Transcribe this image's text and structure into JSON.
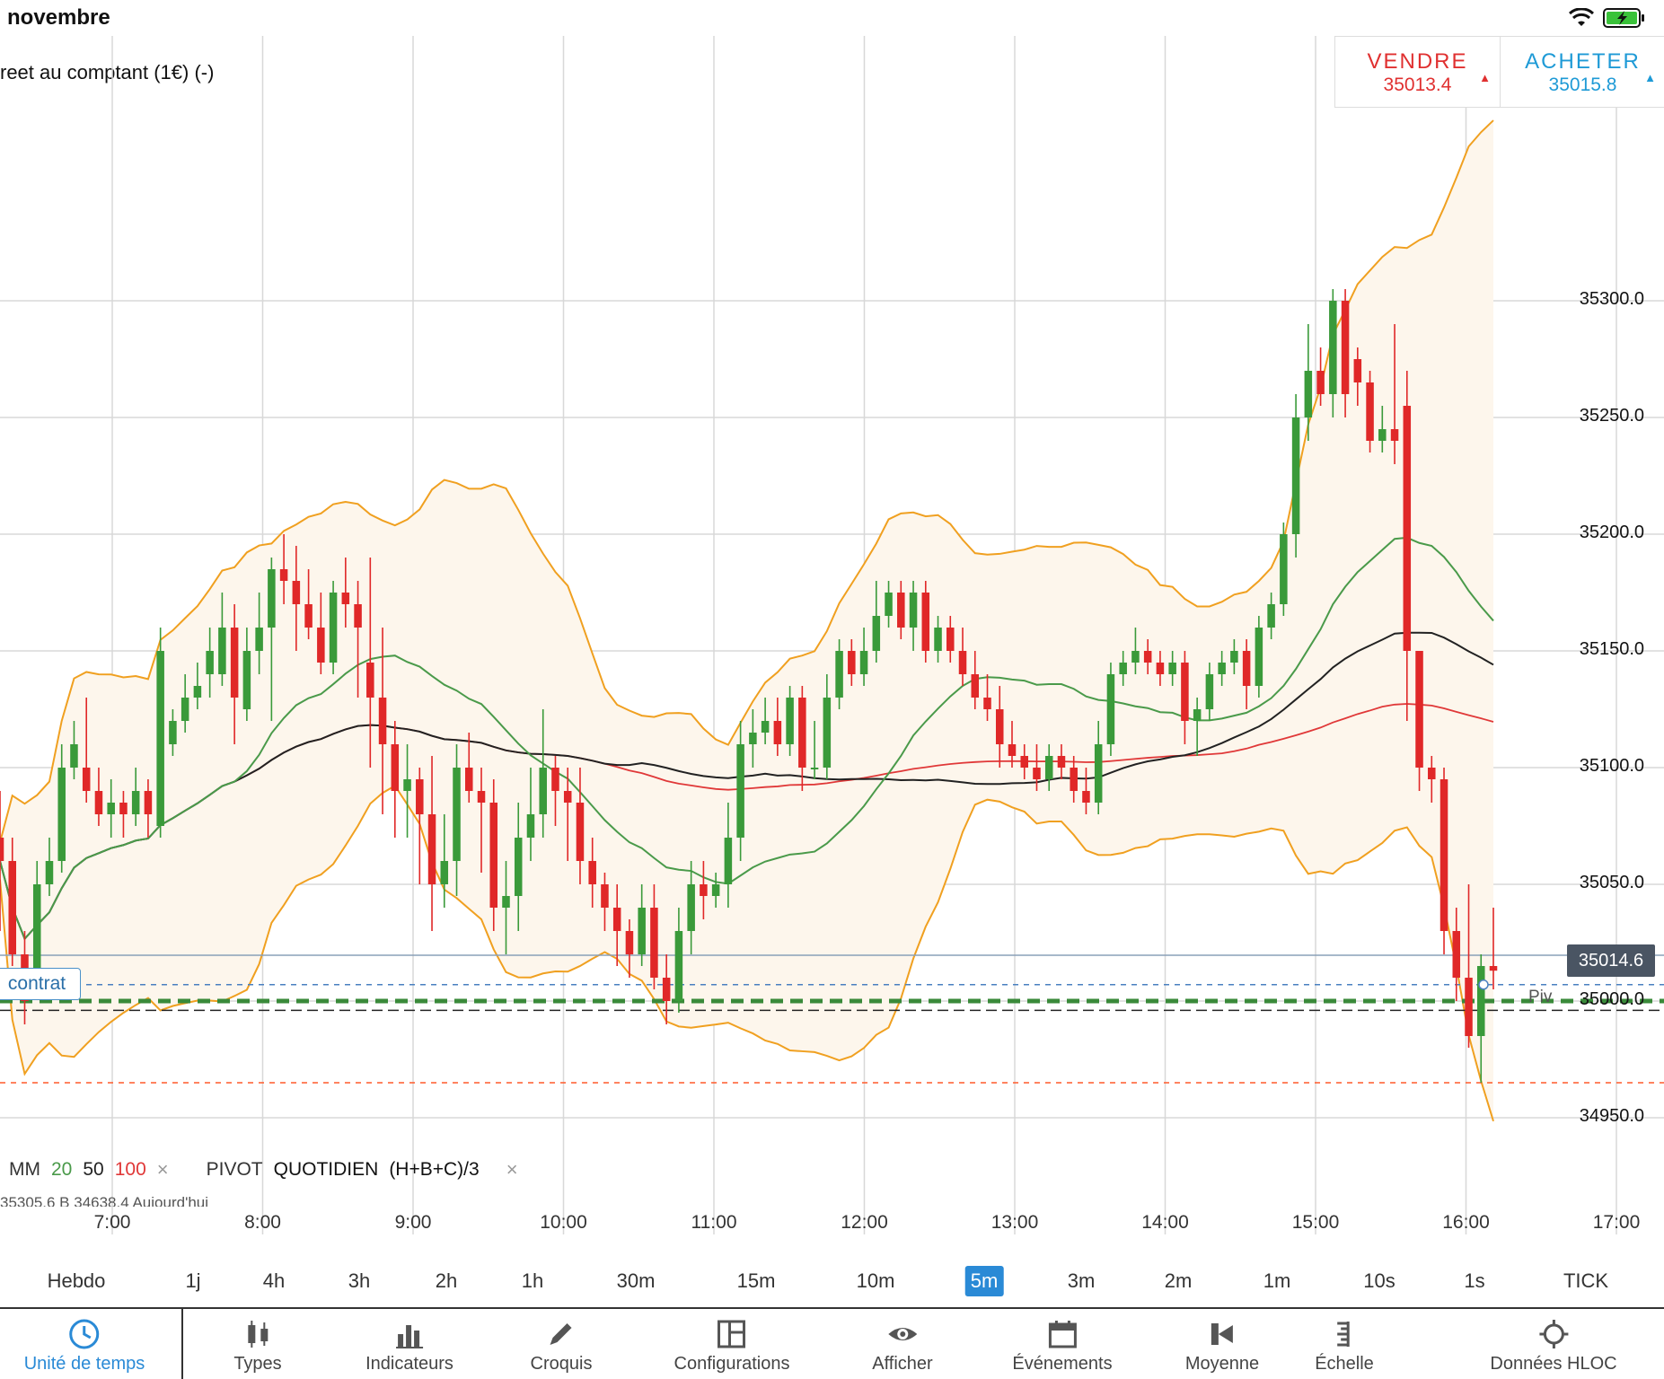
{
  "status": {
    "date": "novembre"
  },
  "instrument": {
    "name": "reet au comptant (1€) (-)"
  },
  "trade": {
    "sell_label": "VENDRE",
    "sell_price": "35013.4",
    "buy_label": "ACHETER",
    "buy_price": "35015.8",
    "up_arrow": "▲"
  },
  "chart_data": {
    "type": "candlestick",
    "y_ticks": [
      "35300.0",
      "35250.0",
      "35200.0",
      "35150.0",
      "35100.0",
      "35050.0",
      "35000.0",
      "34950.0"
    ],
    "x_ticks": [
      "7:00",
      "8:00",
      "9:00",
      "10:00",
      "11:00",
      "12:00",
      "13:00",
      "14:00",
      "15:00",
      "16:00",
      "17:00"
    ],
    "current_price": "35014.6",
    "pivot_label": "Piv",
    "position_label": "contrat",
    "candles": [
      [
        35070,
        35060,
        35090,
        35030
      ],
      [
        35060,
        35020,
        35070,
        35015
      ],
      [
        35020,
        35000,
        35030,
        34990
      ],
      [
        35010,
        35050,
        35060,
        35005
      ],
      [
        35050,
        35060,
        35070,
        35045
      ],
      [
        35060,
        35100,
        35110,
        35055
      ],
      [
        35100,
        35110,
        35120,
        35095
      ],
      [
        35100,
        35090,
        35130,
        35085
      ],
      [
        35090,
        35080,
        35100,
        35075
      ],
      [
        35080,
        35085,
        35095,
        35070
      ],
      [
        35085,
        35080,
        35090,
        35070
      ],
      [
        35080,
        35090,
        35100,
        35075
      ],
      [
        35090,
        35080,
        35095,
        35070
      ],
      [
        35075,
        35150,
        35160,
        35070
      ],
      [
        35110,
        35120,
        35125,
        35105
      ],
      [
        35120,
        35130,
        35140,
        35115
      ],
      [
        35130,
        35135,
        35145,
        35125
      ],
      [
        35140,
        35150,
        35160,
        35130
      ],
      [
        35140,
        35160,
        35175,
        35135
      ],
      [
        35160,
        35130,
        35170,
        35110
      ],
      [
        35125,
        35150,
        35160,
        35120
      ],
      [
        35150,
        35160,
        35175,
        35140
      ],
      [
        35160,
        35185,
        35190,
        35120
      ],
      [
        35185,
        35180,
        35200,
        35170
      ],
      [
        35180,
        35170,
        35195,
        35150
      ],
      [
        35170,
        35160,
        35185,
        35155
      ],
      [
        35160,
        35145,
        35175,
        35140
      ],
      [
        35145,
        35175,
        35180,
        35140
      ],
      [
        35175,
        35170,
        35190,
        35160
      ],
      [
        35170,
        35160,
        35180,
        35130
      ],
      [
        35145,
        35130,
        35190,
        35100
      ],
      [
        35130,
        35110,
        35160,
        35080
      ],
      [
        35110,
        35090,
        35120,
        35070
      ],
      [
        35090,
        35095,
        35110,
        35070
      ],
      [
        35095,
        35080,
        35100,
        35050
      ],
      [
        35080,
        35050,
        35105,
        35030
      ],
      [
        35050,
        35060,
        35080,
        35040
      ],
      [
        35060,
        35100,
        35110,
        35045
      ],
      [
        35100,
        35090,
        35115,
        35085
      ],
      [
        35090,
        35085,
        35100,
        35055
      ],
      [
        35085,
        35040,
        35095,
        35030
      ],
      [
        35040,
        35045,
        35060,
        35020
      ],
      [
        35045,
        35070,
        35085,
        35030
      ],
      [
        35070,
        35080,
        35100,
        35060
      ],
      [
        35080,
        35100,
        35125,
        35070
      ],
      [
        35100,
        35090,
        35105,
        35075
      ],
      [
        35090,
        35085,
        35100,
        35060
      ],
      [
        35085,
        35060,
        35100,
        35050
      ],
      [
        35060,
        35050,
        35070,
        35040
      ],
      [
        35050,
        35040,
        35055,
        35030
      ],
      [
        35040,
        35030,
        35050,
        35015
      ],
      [
        35030,
        35020,
        35035,
        35010
      ],
      [
        35020,
        35040,
        35050,
        35015
      ],
      [
        35040,
        35010,
        35050,
        35005
      ],
      [
        35010,
        35000,
        35020,
        34990
      ],
      [
        35000,
        35030,
        35040,
        34995
      ],
      [
        35030,
        35050,
        35060,
        35020
      ],
      [
        35050,
        35045,
        35060,
        35035
      ],
      [
        35045,
        35050,
        35055,
        35040
      ],
      [
        35050,
        35070,
        35085,
        35040
      ],
      [
        35070,
        35110,
        35120,
        35060
      ],
      [
        35110,
        35115,
        35125,
        35100
      ],
      [
        35115,
        35120,
        35130,
        35110
      ],
      [
        35120,
        35110,
        35130,
        35105
      ],
      [
        35110,
        35130,
        35135,
        35105
      ],
      [
        35130,
        35100,
        35135,
        35090
      ],
      [
        35100,
        35100,
        35120,
        35095
      ],
      [
        35100,
        35130,
        35140,
        35095
      ],
      [
        35130,
        35150,
        35155,
        35125
      ],
      [
        35150,
        35140,
        35155,
        35135
      ],
      [
        35140,
        35150,
        35160,
        35135
      ],
      [
        35150,
        35165,
        35180,
        35145
      ],
      [
        35165,
        35175,
        35180,
        35160
      ],
      [
        35175,
        35160,
        35180,
        35155
      ],
      [
        35160,
        35175,
        35180,
        35150
      ],
      [
        35175,
        35150,
        35180,
        35145
      ],
      [
        35150,
        35160,
        35165,
        35145
      ],
      [
        35160,
        35150,
        35165,
        35145
      ],
      [
        35150,
        35140,
        35160,
        35135
      ],
      [
        35140,
        35130,
        35150,
        35125
      ],
      [
        35130,
        35125,
        35140,
        35120
      ],
      [
        35125,
        35110,
        35135,
        35100
      ],
      [
        35110,
        35105,
        35120,
        35100
      ],
      [
        35105,
        35100,
        35110,
        35095
      ],
      [
        35100,
        35095,
        35110,
        35090
      ],
      [
        35095,
        35105,
        35110,
        35090
      ],
      [
        35105,
        35100,
        35110,
        35095
      ],
      [
        35100,
        35090,
        35105,
        35085
      ],
      [
        35090,
        35085,
        35100,
        35080
      ],
      [
        35085,
        35110,
        35120,
        35080
      ],
      [
        35110,
        35140,
        35145,
        35105
      ],
      [
        35140,
        35145,
        35150,
        35135
      ],
      [
        35145,
        35150,
        35160,
        35140
      ],
      [
        35150,
        35145,
        35155,
        35140
      ],
      [
        35145,
        35140,
        35150,
        35135
      ],
      [
        35140,
        35145,
        35150,
        35135
      ],
      [
        35145,
        35120,
        35150,
        35110
      ],
      [
        35120,
        35125,
        35130,
        35105
      ],
      [
        35125,
        35140,
        35145,
        35120
      ],
      [
        35140,
        35145,
        35150,
        35135
      ],
      [
        35145,
        35150,
        35155,
        35140
      ],
      [
        35150,
        35135,
        35155,
        35125
      ],
      [
        35135,
        35160,
        35165,
        35130
      ],
      [
        35160,
        35170,
        35175,
        35155
      ],
      [
        35170,
        35200,
        35205,
        35165
      ],
      [
        35200,
        35250,
        35260,
        35190
      ],
      [
        35250,
        35270,
        35290,
        35240
      ],
      [
        35270,
        35260,
        35280,
        35255
      ],
      [
        35260,
        35300,
        35305,
        35250
      ],
      [
        35300,
        35260,
        35305,
        35250
      ],
      [
        35275,
        35265,
        35280,
        35255
      ],
      [
        35265,
        35240,
        35270,
        35235
      ],
      [
        35240,
        35245,
        35255,
        35235
      ],
      [
        35245,
        35240,
        35290,
        35230
      ],
      [
        35255,
        35150,
        35270,
        35120
      ],
      [
        35150,
        35100,
        35150,
        35090
      ],
      [
        35100,
        35095,
        35105,
        35085
      ],
      [
        35095,
        35030,
        35100,
        35020
      ],
      [
        35030,
        35010,
        35040,
        35000
      ],
      [
        35010,
        34985,
        35050,
        34980
      ],
      [
        34985,
        35015,
        35020,
        34965
      ],
      [
        35015,
        35013,
        35040,
        35005
      ]
    ]
  },
  "legend": {
    "mm_label": "MM",
    "mm20": "20",
    "mm50": "50",
    "mm100": "100",
    "close": "×",
    "pivot_label": "PIVOT",
    "pivot_period": "QUOTIDIEN",
    "pivot_formula": "(H+B+C)/3",
    "sub": "35305.6   B 34638.4   Aujourd'hui"
  },
  "timeframes": [
    "Hebdo",
    "1j",
    "4h",
    "3h",
    "2h",
    "1h",
    "30m",
    "15m",
    "10m",
    "5m",
    "3m",
    "2m",
    "1m",
    "10s",
    "1s",
    "TICK"
  ],
  "active_timeframe": "5m",
  "toolbar": [
    {
      "label": "Unité de temps",
      "icon": "clock-icon"
    },
    {
      "label": "Types",
      "icon": "candles-icon"
    },
    {
      "label": "Indicateurs",
      "icon": "bar-chart-icon"
    },
    {
      "label": "Croquis",
      "icon": "pencil-icon"
    },
    {
      "label": "Configurations",
      "icon": "layout-icon"
    },
    {
      "label": "Afficher",
      "icon": "eye-icon"
    },
    {
      "label": "Événements",
      "icon": "calendar-icon"
    },
    {
      "label": "Moyenne",
      "icon": "average-icon"
    },
    {
      "label": "Échelle",
      "icon": "scale-icon"
    },
    {
      "label": "Données HLOC",
      "icon": "crosshair-icon"
    }
  ],
  "colors": {
    "up": "#3a9a3a",
    "down": "#e02828",
    "mm20": "#4a9a4a",
    "mm50": "#222222",
    "mm100": "#e03838",
    "bollinger": "#f0a020",
    "accent": "#2a8ad6"
  }
}
